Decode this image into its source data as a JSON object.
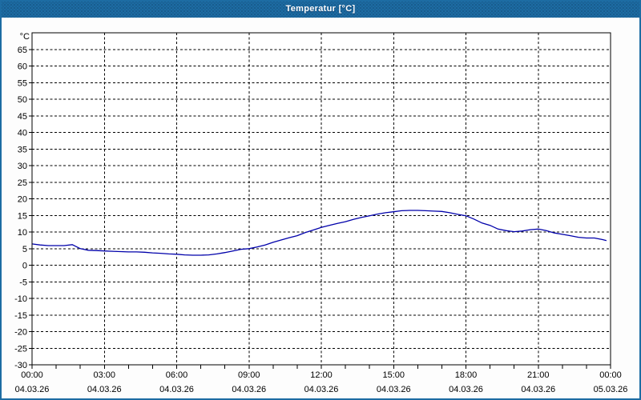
{
  "window": {
    "title": "Temperatur [°C]",
    "titlebar_color": "#1d6ca3",
    "border_color": "#1d6ca3"
  },
  "chart_data": {
    "type": "line",
    "title": "Temperatur [°C]",
    "xlabel": "",
    "ylabel": "°C",
    "ylim": [
      -30,
      70
    ],
    "xlim_hours": [
      0,
      24
    ],
    "grid": "dashed-black",
    "legend": "none",
    "plot_bg": "#ffffff",
    "axis_color": "#000000",
    "y_ticks": [
      65,
      60,
      55,
      50,
      45,
      40,
      35,
      30,
      25,
      20,
      15,
      10,
      5,
      0,
      -5,
      -10,
      -15,
      -20,
      -25,
      -30
    ],
    "x_minor_tick_every_hours": 1,
    "x_ticks": [
      {
        "hour": 0,
        "time": "00:00",
        "date": "04.03.26"
      },
      {
        "hour": 3,
        "time": "03:00",
        "date": "04.03.26"
      },
      {
        "hour": 6,
        "time": "06:00",
        "date": "04.03.26"
      },
      {
        "hour": 9,
        "time": "09:00",
        "date": "04.03.26"
      },
      {
        "hour": 12,
        "time": "12:00",
        "date": "04.03.26"
      },
      {
        "hour": 15,
        "time": "15:00",
        "date": "04.03.26"
      },
      {
        "hour": 18,
        "time": "18:00",
        "date": "04.03.26"
      },
      {
        "hour": 21,
        "time": "21:00",
        "date": "04.03.26"
      },
      {
        "hour": 24,
        "time": "00:00",
        "date": "05.03.26"
      }
    ],
    "series": [
      {
        "name": "Temperatur",
        "unit": "°C",
        "color": "#0000aa",
        "points": [
          [
            0,
            6.4
          ],
          [
            0.33,
            6.1
          ],
          [
            0.67,
            5.9
          ],
          [
            1,
            5.9
          ],
          [
            1.33,
            5.9
          ],
          [
            1.67,
            6.2
          ],
          [
            2,
            5.0
          ],
          [
            2.33,
            4.5
          ],
          [
            2.67,
            4.4
          ],
          [
            3,
            4.3
          ],
          [
            3.33,
            4.2
          ],
          [
            3.67,
            4.1
          ],
          [
            4,
            4.0
          ],
          [
            4.33,
            4.0
          ],
          [
            4.67,
            3.9
          ],
          [
            5,
            3.7
          ],
          [
            5.33,
            3.6
          ],
          [
            5.67,
            3.4
          ],
          [
            6,
            3.3
          ],
          [
            6.33,
            3.1
          ],
          [
            6.67,
            3.0
          ],
          [
            7,
            3.0
          ],
          [
            7.33,
            3.1
          ],
          [
            7.67,
            3.4
          ],
          [
            8,
            3.8
          ],
          [
            8.33,
            4.3
          ],
          [
            8.67,
            4.8
          ],
          [
            9,
            5.0
          ],
          [
            9.33,
            5.5
          ],
          [
            9.67,
            6.1
          ],
          [
            10,
            6.9
          ],
          [
            10.33,
            7.6
          ],
          [
            10.67,
            8.3
          ],
          [
            11,
            8.9
          ],
          [
            11.33,
            9.8
          ],
          [
            11.67,
            10.6
          ],
          [
            12,
            11.4
          ],
          [
            12.33,
            12.0
          ],
          [
            12.67,
            12.6
          ],
          [
            13,
            13.1
          ],
          [
            13.33,
            13.8
          ],
          [
            13.67,
            14.4
          ],
          [
            14,
            14.9
          ],
          [
            14.33,
            15.4
          ],
          [
            14.67,
            15.8
          ],
          [
            15,
            16.1
          ],
          [
            15.33,
            16.4
          ],
          [
            15.67,
            16.5
          ],
          [
            16,
            16.5
          ],
          [
            16.33,
            16.4
          ],
          [
            16.67,
            16.3
          ],
          [
            17,
            16.2
          ],
          [
            17.33,
            15.8
          ],
          [
            17.67,
            15.3
          ],
          [
            18,
            14.9
          ],
          [
            18.33,
            13.9
          ],
          [
            18.67,
            12.7
          ],
          [
            19,
            12.0
          ],
          [
            19.33,
            10.9
          ],
          [
            19.67,
            10.4
          ],
          [
            20,
            10.1
          ],
          [
            20.33,
            10.3
          ],
          [
            20.67,
            10.7
          ],
          [
            21,
            10.9
          ],
          [
            21.33,
            10.4
          ],
          [
            21.67,
            9.7
          ],
          [
            22,
            9.3
          ],
          [
            22.33,
            8.9
          ],
          [
            22.67,
            8.4
          ],
          [
            23,
            8.2
          ],
          [
            23.33,
            8.2
          ],
          [
            23.67,
            7.7
          ],
          [
            23.83,
            7.4
          ]
        ]
      }
    ]
  }
}
